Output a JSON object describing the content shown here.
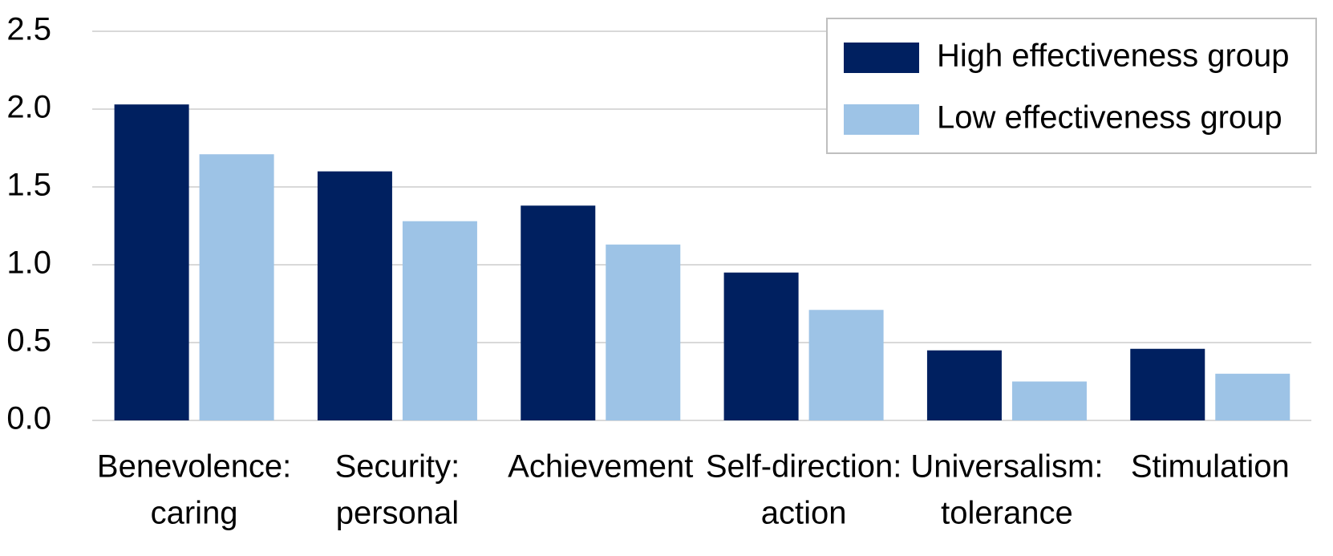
{
  "chart_data": {
    "type": "bar",
    "categories": [
      [
        "Benevolence:",
        "caring"
      ],
      [
        "Security:",
        "personal"
      ],
      [
        "Achievement"
      ],
      [
        "Self-direction:",
        "action"
      ],
      [
        "Universalism:",
        "tolerance"
      ],
      [
        "Stimulation"
      ]
    ],
    "series": [
      {
        "name": "High effectiveness group",
        "color": "#002060",
        "values": [
          2.03,
          1.6,
          1.38,
          0.95,
          0.45,
          0.46
        ]
      },
      {
        "name": "Low effectiveness group",
        "color": "#9dc3e6",
        "values": [
          1.71,
          1.28,
          1.13,
          0.71,
          0.25,
          0.3
        ]
      }
    ],
    "ylim": [
      0,
      2.5
    ],
    "yticks": [
      {
        "value": 0,
        "label": "0.0"
      },
      0.5,
      {
        "value": 1,
        "label": "1.0"
      },
      1.5,
      {
        "value": 2,
        "label": "2.0"
      },
      2.5
    ],
    "grid": true,
    "legend": "top-right"
  }
}
